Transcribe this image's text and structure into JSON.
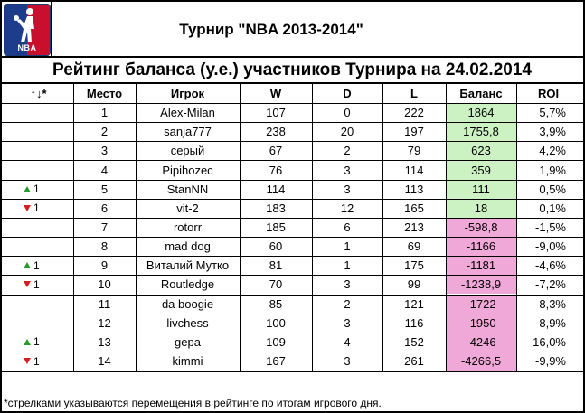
{
  "logo": {
    "text": "NBA"
  },
  "title": "Турнир \"NBA 2013-2014\"",
  "subtitle": "Рейтинг баланса (у.е.) участников Турнира на 24.02.2014",
  "headers": {
    "arrows": "↑↓*",
    "place": "Место",
    "player": "Игрок",
    "w": "W",
    "d": "D",
    "l": "L",
    "balance": "Баланс",
    "roi": "ROI"
  },
  "colors": {
    "positive_fill": "#ccf2c4",
    "negative_fill": "#f0a8d8",
    "up_arrow": "#2a9a2a",
    "down_arrow": "#d02020"
  },
  "rows": [
    {
      "move_dir": "",
      "move_val": "",
      "place": "1",
      "player": "Alex-Milan",
      "w": "107",
      "d": "0",
      "l": "222",
      "balance": "1864",
      "roi": "5,7%",
      "sign": "pos"
    },
    {
      "move_dir": "",
      "move_val": "",
      "place": "2",
      "player": "sanja777",
      "w": "238",
      "d": "20",
      "l": "197",
      "balance": "1755,8",
      "roi": "3,9%",
      "sign": "pos"
    },
    {
      "move_dir": "",
      "move_val": "",
      "place": "3",
      "player": "серый",
      "w": "67",
      "d": "2",
      "l": "79",
      "balance": "623",
      "roi": "4,2%",
      "sign": "pos"
    },
    {
      "move_dir": "",
      "move_val": "",
      "place": "4",
      "player": "Pipihozec",
      "w": "76",
      "d": "3",
      "l": "114",
      "balance": "359",
      "roi": "1,9%",
      "sign": "pos"
    },
    {
      "move_dir": "up",
      "move_val": "1",
      "place": "5",
      "player": "StanNN",
      "w": "114",
      "d": "3",
      "l": "113",
      "balance": "111",
      "roi": "0,5%",
      "sign": "pos"
    },
    {
      "move_dir": "down",
      "move_val": "1",
      "place": "6",
      "player": "vit-2",
      "w": "183",
      "d": "12",
      "l": "165",
      "balance": "18",
      "roi": "0,1%",
      "sign": "pos"
    },
    {
      "move_dir": "",
      "move_val": "",
      "place": "7",
      "player": "rotorr",
      "w": "185",
      "d": "6",
      "l": "213",
      "balance": "-598,8",
      "roi": "-1,5%",
      "sign": "neg"
    },
    {
      "move_dir": "",
      "move_val": "",
      "place": "8",
      "player": "mad dog",
      "w": "60",
      "d": "1",
      "l": "69",
      "balance": "-1166",
      "roi": "-9,0%",
      "sign": "neg"
    },
    {
      "move_dir": "up",
      "move_val": "1",
      "place": "9",
      "player": "Виталий Мутко",
      "w": "81",
      "d": "1",
      "l": "175",
      "balance": "-1181",
      "roi": "-4,6%",
      "sign": "neg"
    },
    {
      "move_dir": "down",
      "move_val": "1",
      "place": "10",
      "player": "Routledge",
      "w": "70",
      "d": "3",
      "l": "99",
      "balance": "-1238,9",
      "roi": "-7,2%",
      "sign": "neg"
    },
    {
      "move_dir": "",
      "move_val": "",
      "place": "11",
      "player": "da boogie",
      "w": "85",
      "d": "2",
      "l": "121",
      "balance": "-1722",
      "roi": "-8,3%",
      "sign": "neg"
    },
    {
      "move_dir": "",
      "move_val": "",
      "place": "12",
      "player": "livchess",
      "w": "100",
      "d": "3",
      "l": "116",
      "balance": "-1950",
      "roi": "-8,9%",
      "sign": "neg"
    },
    {
      "move_dir": "up",
      "move_val": "1",
      "place": "13",
      "player": "gepa",
      "w": "109",
      "d": "4",
      "l": "152",
      "balance": "-4246",
      "roi": "-16,0%",
      "sign": "neg"
    },
    {
      "move_dir": "down",
      "move_val": "1",
      "place": "14",
      "player": "kimmi",
      "w": "167",
      "d": "3",
      "l": "261",
      "balance": "-4266,5",
      "roi": "-9,9%",
      "sign": "neg"
    }
  ],
  "footnote": "*стрелками указываются перемещения в рейтинге по итогам игрового дня."
}
